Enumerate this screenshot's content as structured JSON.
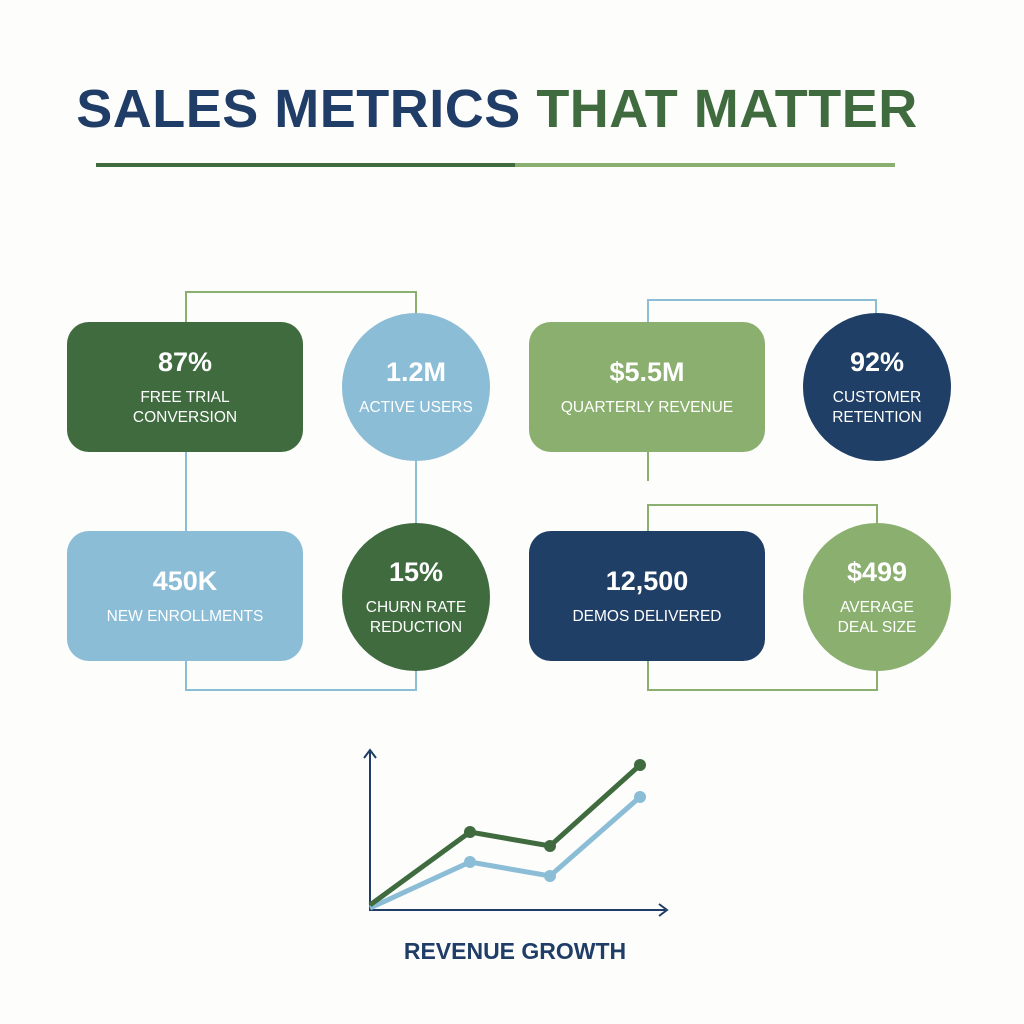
{
  "header": {
    "title": {
      "primary": "SALES METRICS",
      "accent": "THAT MATTER"
    }
  },
  "metrics": [
    {
      "value": "87%",
      "label": [
        "FREE TRIAL",
        "CONVERSION"
      ]
    },
    {
      "value": "1.2M",
      "label": [
        "ACTIVE USERS"
      ]
    },
    {
      "value": "$5.5M",
      "label": [
        "QUARTERLY REVENUE"
      ]
    },
    {
      "value": "92%",
      "label": [
        "CUSTOMER",
        "RETENTION"
      ]
    },
    {
      "value": "450K",
      "label": [
        "NEW ENROLLMENTS"
      ]
    },
    {
      "value": "15%",
      "label": [
        "CHURN RATE",
        "REDUCTION"
      ]
    },
    {
      "value": "12,500",
      "label": [
        "DEMOS DELIVERED"
      ]
    },
    {
      "value": "$499",
      "label": [
        "AVERAGE",
        "DEAL SIZE"
      ]
    }
  ],
  "footer_chart": {
    "caption": "REVENUE GROWTH"
  }
}
